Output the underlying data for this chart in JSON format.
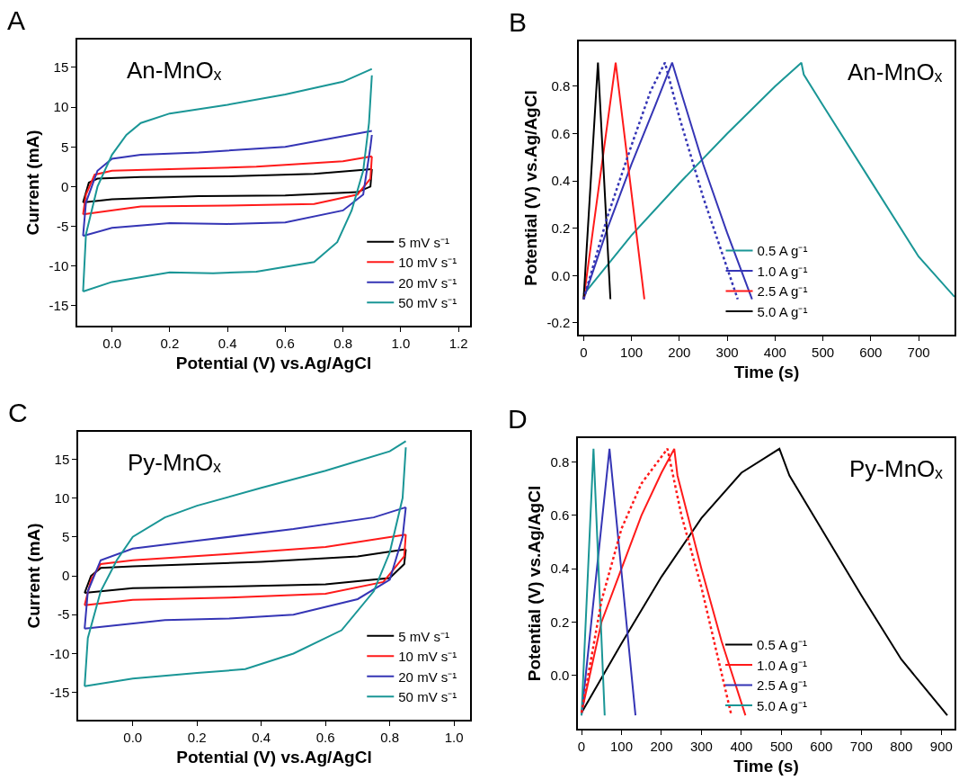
{
  "chart_data": [
    {
      "type": "line",
      "title": "A",
      "xlabel": "Potential (V) vs.Ag/AgCl",
      "ylabel": "Current (mA)",
      "annotations": [
        "An-MnOₓ"
      ],
      "legend": "bottom right",
      "line_style": "solid",
      "xlim": [
        -0.12,
        1.24
      ],
      "ylim": [
        -17.5,
        18.5
      ],
      "xticks": [
        {
          "value": 0,
          "label": "0.0"
        },
        {
          "value": 0.2,
          "label": "0.2"
        },
        {
          "value": 0.4,
          "label": "0.4"
        },
        {
          "value": 0.6,
          "label": "0.6"
        },
        {
          "value": 0.8,
          "label": "0.8"
        },
        {
          "value": 1.0,
          "label": "1.0"
        },
        {
          "value": 1.2,
          "label": "1.2"
        }
      ],
      "yticks": [
        -15,
        -10,
        -5,
        0,
        5,
        10,
        15
      ],
      "series": [
        {
          "name": "5 mV s⁻¹",
          "color": "#000000",
          "x": [
            -0.1,
            -0.08,
            -0.05,
            0.1,
            0.4,
            0.7,
            0.9
          ],
          "values": [
            -2,
            0.5,
            1,
            1.2,
            1.3,
            1.6,
            2.2
          ]
        },
        {
          "color": "#000000",
          "x": [
            -0.1,
            0,
            0.3,
            0.6,
            0.85,
            0.895,
            0.9
          ],
          "values": [
            -2,
            -1.6,
            -1.2,
            -1.1,
            -0.7,
            0,
            2.2
          ]
        },
        {
          "name": "10 mV s⁻¹",
          "color": "#ff1a1a",
          "x": [
            -0.1,
            -0.09,
            -0.06,
            0,
            0.2,
            0.5,
            0.8,
            0.9
          ],
          "values": [
            -3.5,
            -1,
            1.5,
            2,
            2.2,
            2.5,
            3.2,
            3.8
          ]
        },
        {
          "color": "#ff1a1a",
          "x": [
            -0.1,
            0.1,
            0.4,
            0.7,
            0.85,
            0.895,
            0.9
          ],
          "values": [
            -3.5,
            -2.5,
            -2.4,
            -2.2,
            -1,
            1,
            3.8
          ]
        },
        {
          "name": "20 mV s⁻¹",
          "color": "#3535b5",
          "x": [
            -0.1,
            -0.09,
            -0.05,
            0,
            0.1,
            0.3,
            0.6,
            0.9
          ],
          "values": [
            -6.2,
            -2,
            2,
            3.5,
            4,
            4.3,
            5,
            7
          ]
        },
        {
          "color": "#3535b5",
          "x": [
            -0.1,
            0,
            0.2,
            0.4,
            0.6,
            0.8,
            0.87,
            0.895,
            0.9
          ],
          "values": [
            -6.2,
            -5.2,
            -4.6,
            -4.7,
            -4.5,
            -3,
            -1,
            5,
            6.5
          ]
        },
        {
          "name": "50 mV s⁻¹",
          "color": "#1a9696",
          "x": [
            -0.1,
            -0.09,
            -0.05,
            0,
            0.05,
            0.1,
            0.2,
            0.4,
            0.6,
            0.8,
            0.9
          ],
          "values": [
            -13.2,
            -6,
            0,
            4,
            6.5,
            8,
            9.2,
            10.3,
            11.6,
            13.2,
            14.8
          ]
        },
        {
          "color": "#1a9696",
          "x": [
            -0.1,
            0,
            0.2,
            0.35,
            0.5,
            0.7,
            0.78,
            0.83,
            0.87,
            0.89,
            0.9
          ],
          "values": [
            -13.2,
            -12,
            -10.8,
            -10.9,
            -10.7,
            -9.5,
            -7,
            -3,
            2,
            8,
            14
          ]
        }
      ]
    },
    {
      "type": "line",
      "title": "B",
      "xlabel": "Time (s)",
      "ylabel": "Potential (V) vs.Ag/AgCl",
      "annotations": [
        "An-MnOₓ"
      ],
      "legend": "bottom",
      "line_style": "solid",
      "xlim": [
        -10,
        775
      ],
      "ylim": [
        -0.25,
        0.99
      ],
      "xticks": [
        0,
        100,
        200,
        300,
        400,
        500,
        600,
        700
      ],
      "yticks": [
        {
          "value": -0.2,
          "label": "-0.2"
        },
        {
          "value": 0,
          "label": "0.0"
        },
        {
          "value": 0.2,
          "label": "0.2"
        },
        {
          "value": 0.4,
          "label": "0.4"
        },
        {
          "value": 0.6,
          "label": "0.6"
        },
        {
          "value": 0.8,
          "label": "0.8"
        }
      ],
      "series": [
        {
          "name": "0.5 A g⁻¹",
          "color": "#1a9696",
          "x": [
            0,
            100,
            200,
            300,
            400,
            455,
            460,
            500,
            600,
            700,
            775
          ],
          "values": [
            -0.08,
            0.17,
            0.39,
            0.6,
            0.8,
            0.9,
            0.85,
            0.72,
            0.4,
            0.08,
            -0.09
          ]
        },
        {
          "name": "1.0 A g⁻¹",
          "color": "#3535b5",
          "x": [
            0,
            50,
            100,
            150,
            185,
            200,
            250,
            300,
            352
          ],
          "values": [
            -0.1,
            0.2,
            0.47,
            0.72,
            0.9,
            0.8,
            0.47,
            0.18,
            -0.1
          ]
        },
        {
          "name": "2.5 A g⁻¹",
          "color": "#ff1a1a",
          "x": [
            0,
            67,
            127
          ],
          "values": [
            -0.1,
            0.9,
            -0.1
          ]
        },
        {
          "name": "5.0 A g⁻¹",
          "color": "#000000",
          "x": [
            0,
            30,
            56
          ],
          "values": [
            -0.1,
            0.9,
            -0.1
          ]
        },
        {
          "color": "#3535b5",
          "line_style": "dotted",
          "x": [
            0,
            50,
            100,
            140,
            170,
            200,
            250,
            322
          ],
          "values": [
            -0.1,
            0.25,
            0.55,
            0.78,
            0.9,
            0.67,
            0.33,
            -0.1
          ]
        }
      ]
    },
    {
      "type": "line",
      "title": "C",
      "xlabel": "Potential (V) vs.Ag/AgCl",
      "ylabel": "Current (mA)",
      "annotations": [
        "Py-MnOₓ"
      ],
      "legend": "bottom right",
      "line_style": "solid",
      "xlim": [
        -0.17,
        1.05
      ],
      "ylim": [
        -18.5,
        18.5
      ],
      "xticks": [
        {
          "value": 0,
          "label": "0.0"
        },
        {
          "value": 0.2,
          "label": "0.2"
        },
        {
          "value": 0.4,
          "label": "0.4"
        },
        {
          "value": 0.6,
          "label": "0.6"
        },
        {
          "value": 0.8,
          "label": "0.8"
        },
        {
          "value": 1.0,
          "label": "1.0"
        }
      ],
      "yticks": [
        -15,
        -10,
        -5,
        0,
        5,
        10,
        15
      ],
      "series": [
        {
          "name": "5 mV s⁻¹",
          "color": "#000000",
          "x": [
            -0.15,
            -0.13,
            -0.1,
            0,
            0.4,
            0.7,
            0.85
          ],
          "values": [
            -2.2,
            0,
            1,
            1.2,
            1.8,
            2.5,
            3.4
          ]
        },
        {
          "color": "#000000",
          "x": [
            -0.15,
            0,
            0.3,
            0.6,
            0.8,
            0.845,
            0.85
          ],
          "values": [
            -2.2,
            -1.6,
            -1.4,
            -1.1,
            -0.3,
            1.5,
            3.4
          ]
        },
        {
          "name": "10 mV s⁻¹",
          "color": "#ff1a1a",
          "x": [
            -0.15,
            -0.13,
            -0.1,
            0,
            0.3,
            0.6,
            0.85
          ],
          "values": [
            -3.8,
            -0.5,
            1.5,
            2,
            2.8,
            3.7,
            5.3
          ]
        },
        {
          "color": "#ff1a1a",
          "x": [
            -0.15,
            0,
            0.3,
            0.6,
            0.78,
            0.845,
            0.85
          ],
          "values": [
            -3.8,
            -3.1,
            -2.8,
            -2.3,
            -0.8,
            2.5,
            5.3
          ]
        },
        {
          "name": "20 mV s⁻¹",
          "color": "#3535b5",
          "x": [
            -0.15,
            -0.14,
            -0.1,
            0,
            0.2,
            0.5,
            0.75,
            0.85
          ],
          "values": [
            -6.8,
            -2,
            2,
            3.5,
            4.5,
            6,
            7.5,
            8.8
          ]
        },
        {
          "color": "#3535b5",
          "x": [
            -0.15,
            0.1,
            0.3,
            0.5,
            0.7,
            0.8,
            0.84,
            0.85
          ],
          "values": [
            -6.8,
            -5.7,
            -5.5,
            -5,
            -3,
            -0.5,
            5,
            8.8
          ]
        },
        {
          "name": "50 mV s⁻¹",
          "color": "#1a9696",
          "x": [
            -0.15,
            -0.14,
            -0.1,
            -0.05,
            0,
            0.1,
            0.2,
            0.4,
            0.6,
            0.8,
            0.85
          ],
          "values": [
            -14.2,
            -8,
            -2,
            2,
            5,
            7.5,
            9,
            11.3,
            13.5,
            16,
            17.3
          ]
        },
        {
          "color": "#1a9696",
          "x": [
            -0.15,
            0,
            0.2,
            0.35,
            0.5,
            0.65,
            0.75,
            0.8,
            0.84,
            0.85
          ],
          "values": [
            -14.2,
            -13.2,
            -12.5,
            -12,
            -10,
            -7,
            -2,
            3,
            10,
            16.5
          ]
        }
      ]
    },
    {
      "type": "line",
      "title": "D",
      "xlabel": "Time (s)",
      "ylabel": "Potential (V) vs.Ag/AgCl",
      "annotations": [
        "Py-MnOₓ"
      ],
      "legend": "bottom",
      "line_style": "solid",
      "xlim": [
        -9,
        933
      ],
      "ylim": [
        -0.2,
        0.89
      ],
      "xticks": [
        0,
        100,
        200,
        300,
        400,
        500,
        600,
        700,
        800,
        900
      ],
      "yticks": [
        {
          "value": 0,
          "label": "0.0"
        },
        {
          "value": 0.2,
          "label": "0.2"
        },
        {
          "value": 0.4,
          "label": "0.4"
        },
        {
          "value": 0.6,
          "label": "0.6"
        },
        {
          "value": 0.8,
          "label": "0.8"
        }
      ],
      "series": [
        {
          "name": "0.5 A g⁻¹",
          "color": "#000000",
          "x": [
            0,
            100,
            200,
            300,
            400,
            495,
            520,
            600,
            700,
            800,
            915
          ],
          "values": [
            -0.14,
            0.12,
            0.37,
            0.59,
            0.76,
            0.85,
            0.75,
            0.55,
            0.3,
            0.06,
            -0.15
          ]
        },
        {
          "name": "1.0 A g⁻¹",
          "color": "#ff1a1a",
          "x": [
            0,
            50,
            100,
            150,
            200,
            232,
            240,
            300,
            350,
            410
          ],
          "values": [
            -0.14,
            0.2,
            0.4,
            0.6,
            0.76,
            0.85,
            0.75,
            0.4,
            0.13,
            -0.15
          ]
        },
        {
          "name": "2.5 A g⁻¹",
          "color": "#3535b5",
          "x": [
            0,
            70,
            135
          ],
          "values": [
            -0.15,
            0.85,
            -0.15
          ]
        },
        {
          "name": "5.0 A g⁻¹",
          "color": "#1a9696",
          "x": [
            0,
            30,
            58
          ],
          "values": [
            -0.15,
            0.85,
            -0.15
          ]
        },
        {
          "color": "#ff1a1a",
          "line_style": "dotted",
          "x": [
            0,
            50,
            100,
            150,
            215,
            250,
            300,
            375
          ],
          "values": [
            -0.14,
            0.28,
            0.55,
            0.72,
            0.85,
            0.6,
            0.33,
            -0.15
          ]
        }
      ]
    }
  ]
}
